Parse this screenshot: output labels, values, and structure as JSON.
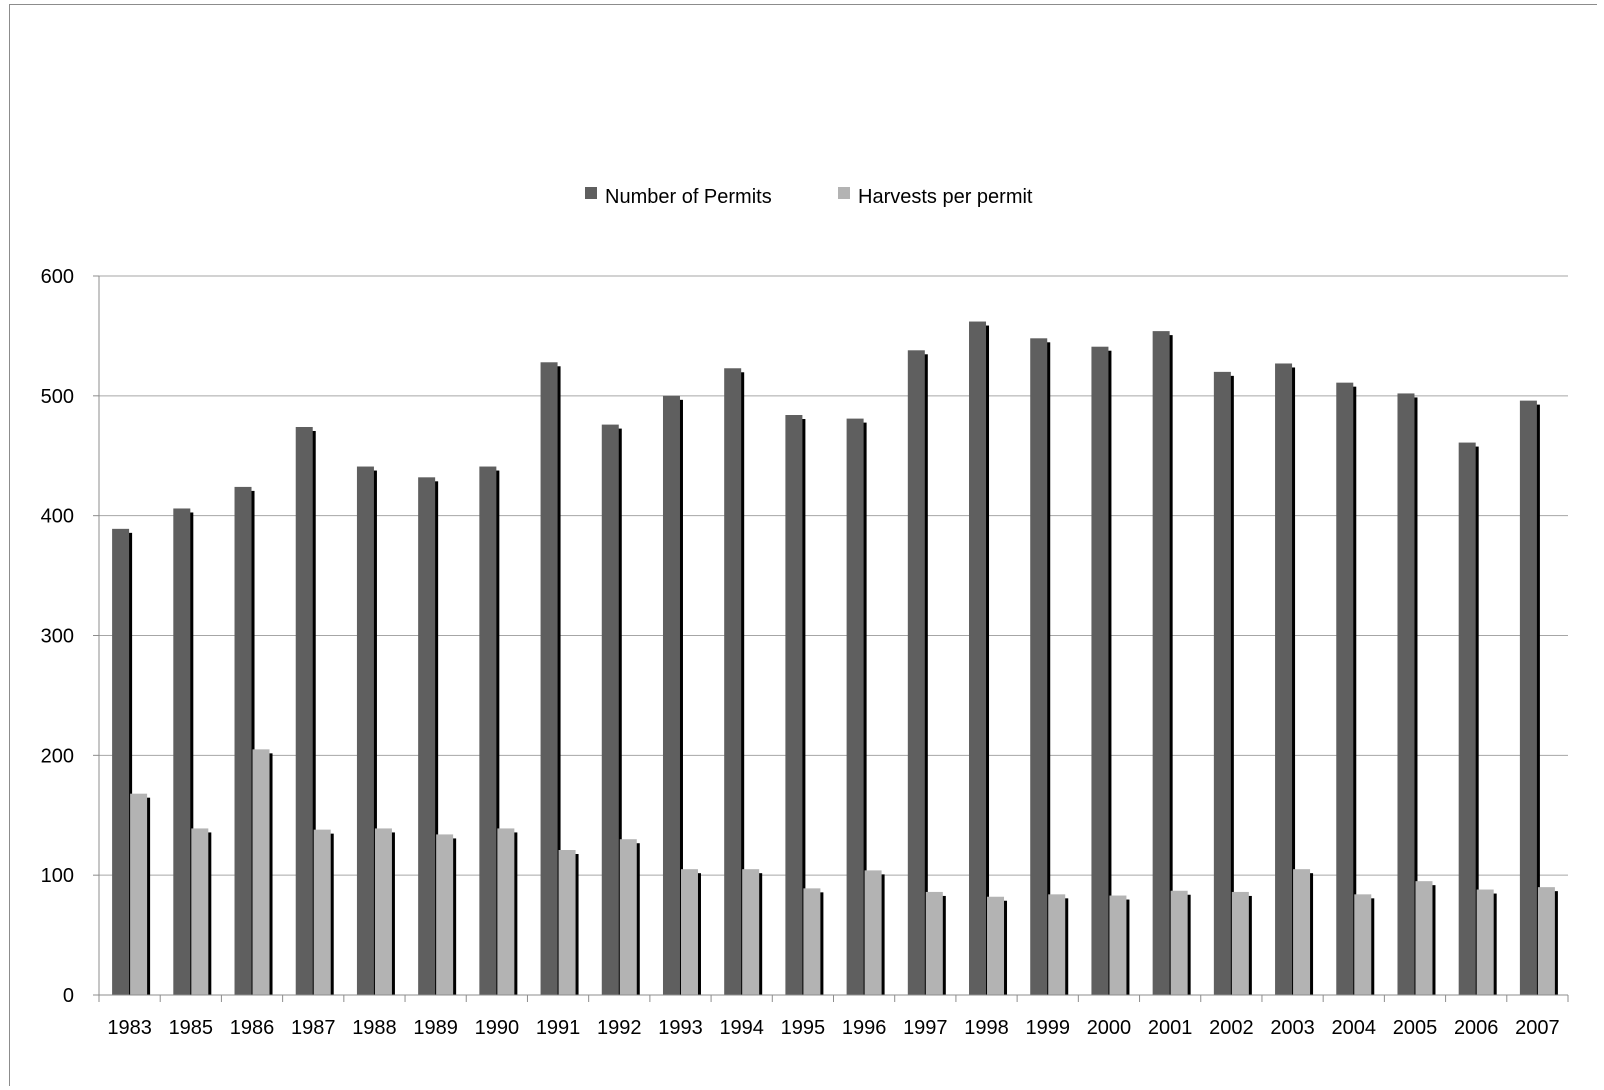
{
  "chart_data": {
    "type": "bar",
    "title": "",
    "xlabel": "",
    "ylabel": "",
    "ylim": [
      0,
      600
    ],
    "yticks": [
      0,
      100,
      200,
      300,
      400,
      500,
      600
    ],
    "grid": true,
    "legend_position": "top",
    "categories": [
      "1983",
      "1985",
      "1986",
      "1987",
      "1988",
      "1989",
      "1990",
      "1991",
      "1992",
      "1993",
      "1994",
      "1995",
      "1996",
      "1997",
      "1998",
      "1999",
      "2000",
      "2001",
      "2002",
      "2003",
      "2004",
      "2005",
      "2006",
      "2007"
    ],
    "series": [
      {
        "name": "Number of Permits",
        "color": "#5f5f5f",
        "values": [
          389,
          406,
          424,
          474,
          441,
          432,
          441,
          528,
          476,
          500,
          523,
          484,
          481,
          538,
          562,
          548,
          541,
          554,
          520,
          527,
          511,
          502,
          461,
          496
        ]
      },
      {
        "name": "Harvests per permit",
        "color": "#b3b3b3",
        "values": [
          168,
          139,
          205,
          138,
          139,
          134,
          139,
          121,
          130,
          105,
          105,
          89,
          104,
          86,
          82,
          84,
          83,
          87,
          86,
          105,
          84,
          95,
          88,
          90
        ]
      }
    ]
  }
}
